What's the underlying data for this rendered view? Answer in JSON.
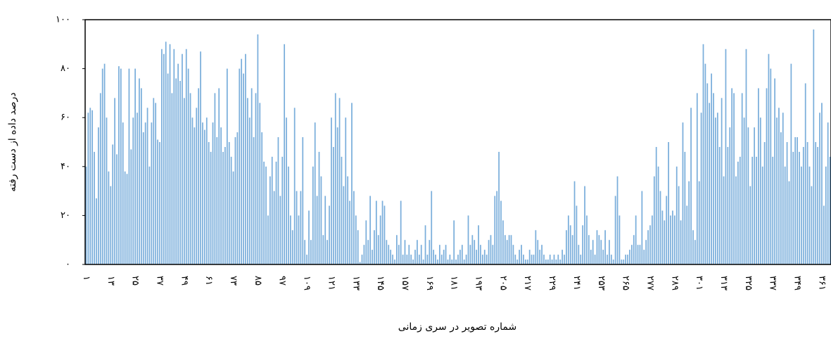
{
  "chart_data": {
    "type": "bar",
    "x_label": "شماره تصویر در سری زمانی",
    "y_label": "درصد داده از دست رفته",
    "color": "#7aaedb",
    "ylim": [
      0,
      100
    ],
    "yticks": [
      {
        "value": 0,
        "label": "۰"
      },
      {
        "value": 20,
        "label": "۲۰"
      },
      {
        "value": 40,
        "label": "۴۰"
      },
      {
        "value": 60,
        "label": "۶۰"
      },
      {
        "value": 80,
        "label": "۸۰"
      },
      {
        "value": 100,
        "label": "۱۰۰"
      }
    ],
    "categories": [
      "۱",
      null,
      null,
      null,
      null,
      null,
      null,
      null,
      null,
      null,
      null,
      null,
      "۱۳",
      null,
      null,
      null,
      null,
      null,
      null,
      null,
      null,
      null,
      null,
      null,
      "۲۵",
      null,
      null,
      null,
      null,
      null,
      null,
      null,
      null,
      null,
      null,
      null,
      "۳۷",
      null,
      null,
      null,
      null,
      null,
      null,
      null,
      null,
      null,
      null,
      null,
      "۴۹",
      null,
      null,
      null,
      null,
      null,
      null,
      null,
      null,
      null,
      null,
      null,
      "۶۱",
      null,
      null,
      null,
      null,
      null,
      null,
      null,
      null,
      null,
      null,
      null,
      "۷۳",
      null,
      null,
      null,
      null,
      null,
      null,
      null,
      null,
      null,
      null,
      null,
      "۸۵",
      null,
      null,
      null,
      null,
      null,
      null,
      null,
      null,
      null,
      null,
      null,
      "۹۷",
      null,
      null,
      null,
      null,
      null,
      null,
      null,
      null,
      null,
      null,
      null,
      "۱۰۹",
      null,
      null,
      null,
      null,
      null,
      null,
      null,
      null,
      null,
      null,
      null,
      "۱۲۱",
      null,
      null,
      null,
      null,
      null,
      null,
      null,
      null,
      null,
      null,
      null,
      "۱۳۳",
      null,
      null,
      null,
      null,
      null,
      null,
      null,
      null,
      null,
      null,
      null,
      "۱۴۵",
      null,
      null,
      null,
      null,
      null,
      null,
      null,
      null,
      null,
      null,
      null,
      "۱۵۷",
      null,
      null,
      null,
      null,
      null,
      null,
      null,
      null,
      null,
      null,
      null,
      "۱۶۹",
      null,
      null,
      null,
      null,
      null,
      null,
      null,
      null,
      null,
      null,
      null,
      "۱۸۱",
      null,
      null,
      null,
      null,
      null,
      null,
      null,
      null,
      null,
      null,
      null,
      "۱۹۳",
      null,
      null,
      null,
      null,
      null,
      null,
      null,
      null,
      null,
      null,
      null,
      "۲۰۵",
      null,
      null,
      null,
      null,
      null,
      null,
      null,
      null,
      null,
      null,
      null,
      "۲۱۷",
      null,
      null,
      null,
      null,
      null,
      null,
      null,
      null,
      null,
      null,
      null,
      "۲۲۹",
      null,
      null,
      null,
      null,
      null,
      null,
      null,
      null,
      null,
      null,
      null,
      "۲۴۱",
      null,
      null,
      null,
      null,
      null,
      null,
      null,
      null,
      null,
      null,
      null,
      "۲۵۳",
      null,
      null,
      null,
      null,
      null,
      null,
      null,
      null,
      null,
      null,
      null,
      "۲۶۵",
      null,
      null,
      null,
      null,
      null,
      null,
      null,
      null,
      null,
      null,
      null,
      "۲۷۷",
      null,
      null,
      null,
      null,
      null,
      null,
      null,
      null,
      null,
      null,
      null,
      "۲۸۹",
      null,
      null,
      null,
      null,
      null,
      null,
      null,
      null,
      null,
      null,
      null,
      "۳۰۱",
      null,
      null,
      null,
      null,
      null,
      null,
      null,
      null,
      null,
      null,
      null,
      "۳۱۳",
      null,
      null,
      null,
      null,
      null,
      null,
      null,
      null,
      null,
      null,
      null,
      "۳۲۵",
      null,
      null,
      null,
      null,
      null,
      null,
      null,
      null,
      null,
      null,
      null,
      "۳۳۷",
      null,
      null,
      null,
      null,
      null,
      null,
      null,
      null,
      null,
      null,
      null,
      "۳۴۹",
      null,
      null,
      null,
      null,
      null,
      null,
      null,
      null,
      null,
      null,
      null,
      "۳۶۱",
      null,
      null,
      null,
      null
    ],
    "values": [
      40,
      62,
      64,
      63,
      46,
      27,
      56,
      70,
      80,
      82,
      60,
      38,
      32,
      49,
      68,
      45,
      81,
      80,
      58,
      38,
      37,
      80,
      47,
      60,
      80,
      62,
      76,
      72,
      54,
      58,
      64,
      40,
      58,
      68,
      66,
      51,
      50,
      88,
      86,
      91,
      78,
      90,
      70,
      88,
      76,
      82,
      75,
      86,
      68,
      88,
      80,
      70,
      60,
      56,
      64,
      72,
      87,
      58,
      55,
      60,
      50,
      46,
      58,
      70,
      52,
      72,
      56,
      46,
      48,
      80,
      50,
      44,
      38,
      52,
      54,
      80,
      84,
      78,
      86,
      68,
      60,
      72,
      52,
      70,
      94,
      66,
      54,
      42,
      40,
      20,
      36,
      44,
      30,
      42,
      52,
      28,
      44,
      90,
      60,
      40,
      20,
      14,
      64,
      30,
      20,
      30,
      52,
      10,
      4,
      22,
      10,
      40,
      58,
      28,
      46,
      36,
      12,
      28,
      10,
      24,
      60,
      48,
      70,
      56,
      68,
      44,
      32,
      60,
      36,
      26,
      66,
      30,
      20,
      14,
      1,
      4,
      8,
      18,
      10,
      28,
      6,
      14,
      26,
      12,
      20,
      26,
      24,
      10,
      8,
      6,
      4,
      2,
      12,
      8,
      26,
      4,
      10,
      4,
      8,
      4,
      2,
      6,
      10,
      4,
      8,
      2,
      16,
      4,
      10,
      30,
      6,
      4,
      2,
      8,
      4,
      6,
      8,
      2,
      4,
      2,
      18,
      2,
      4,
      6,
      8,
      2,
      4,
      20,
      8,
      12,
      10,
      6,
      16,
      8,
      4,
      6,
      4,
      10,
      12,
      8,
      28,
      30,
      46,
      26,
      18,
      12,
      10,
      12,
      12,
      8,
      4,
      2,
      6,
      8,
      4,
      2,
      2,
      6,
      4,
      4,
      14,
      10,
      6,
      8,
      4,
      2,
      2,
      4,
      2,
      4,
      2,
      4,
      2,
      6,
      4,
      14,
      20,
      16,
      12,
      34,
      24,
      8,
      4,
      16,
      32,
      20,
      12,
      6,
      10,
      4,
      14,
      12,
      10,
      6,
      14,
      4,
      10,
      4,
      2,
      28,
      36,
      20,
      2,
      2,
      4,
      4,
      6,
      8,
      12,
      20,
      8,
      8,
      30,
      6,
      10,
      14,
      16,
      20,
      36,
      48,
      40,
      30,
      22,
      18,
      28,
      50,
      20,
      22,
      20,
      40,
      32,
      18,
      58,
      46,
      24,
      34,
      64,
      14,
      10,
      70,
      34,
      62,
      90,
      82,
      74,
      66,
      78,
      70,
      60,
      62,
      48,
      68,
      36,
      88,
      48,
      56,
      72,
      70,
      36,
      42,
      44,
      70,
      60,
      88,
      56,
      32,
      44,
      56,
      44,
      72,
      60,
      40,
      50,
      72,
      86,
      80,
      44,
      76,
      60,
      64,
      54,
      62,
      40,
      50,
      34,
      82,
      46,
      52,
      52,
      46,
      40,
      48,
      74,
      50,
      40,
      32,
      96,
      50,
      48,
      62,
      66,
      24,
      40,
      58,
      44
    ]
  }
}
